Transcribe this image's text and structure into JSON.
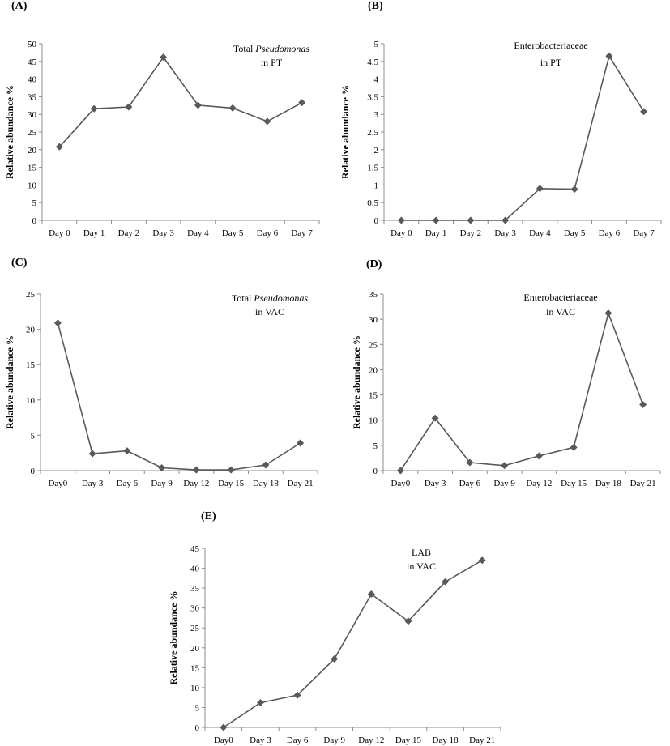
{
  "chart_data": [
    {
      "panel": "(A)",
      "type": "line",
      "annotation": [
        "Total ",
        "Pseudomonas",
        "in PT"
      ],
      "ylabel": "Relative abundance %",
      "categories": [
        "Day 0",
        "Day 1",
        "Day 2",
        "Day 3",
        "Day 4",
        "Day 5",
        "Day 6",
        "Day 7"
      ],
      "values": [
        20.8,
        31.6,
        32.1,
        46.2,
        32.6,
        31.8,
        28.0,
        33.3
      ],
      "yticks": [
        "0",
        "5",
        "10",
        "15",
        "20",
        "25",
        "30",
        "35",
        "40",
        "45",
        "50"
      ],
      "ylim": [
        0,
        50
      ],
      "grid": false
    },
    {
      "panel": "(B)",
      "type": "line",
      "annotation": [
        "Enterobacteriaceae",
        "",
        "in PT"
      ],
      "ylabel": "Relative abundance %",
      "categories": [
        "Day 0",
        "Day 1",
        "Day 2",
        "Day 3",
        "Day 4",
        "Day 5",
        "Day 6",
        "Day 7"
      ],
      "values": [
        0,
        0,
        0,
        0,
        0.9,
        0.88,
        4.65,
        3.08
      ],
      "yticks": [
        "0",
        "0.5",
        "1",
        "1.5",
        "2",
        "2.5",
        "3",
        "3.5",
        "4",
        "4.5",
        "5"
      ],
      "ylim": [
        0,
        5
      ],
      "grid": false
    },
    {
      "panel": "(C)",
      "type": "line",
      "annotation": [
        "Total ",
        "Pseudomonas",
        "in VAC"
      ],
      "ylabel": "Relative abundance %",
      "categories": [
        "Day0",
        "Day 3",
        "Day 6",
        "Day 9",
        "Day 12",
        "Day 15",
        "Day 18",
        "Day 21"
      ],
      "values": [
        20.9,
        2.4,
        2.8,
        0.4,
        0.1,
        0.1,
        0.8,
        3.9
      ],
      "yticks": [
        "0",
        "5",
        "10",
        "15",
        "20",
        "25"
      ],
      "ylim": [
        0,
        25
      ],
      "grid": false
    },
    {
      "panel": "(D)",
      "type": "line",
      "annotation": [
        "Enterobacteriaceae",
        "",
        "in VAC"
      ],
      "ylabel": "Relative abundance %",
      "categories": [
        "Day0",
        "Day 3",
        "Day 6",
        "Day 9",
        "Day 12",
        "Day 15",
        "Day 18",
        "Day 21"
      ],
      "values": [
        0,
        10.4,
        1.6,
        1.0,
        2.9,
        4.6,
        31.2,
        13.1
      ],
      "yticks": [
        "0",
        "5",
        "10",
        "15",
        "20",
        "25",
        "30",
        "35"
      ],
      "ylim": [
        0,
        35
      ],
      "grid": false
    },
    {
      "panel": "(E)",
      "type": "line",
      "annotation": [
        "LAB",
        "",
        "in VAC"
      ],
      "ylabel": "Relative abundance %",
      "categories": [
        "Day0",
        "Day 3",
        "Day 6",
        "Day 9",
        "Day 12",
        "Day 15",
        "Day 18",
        "Day 21"
      ],
      "values": [
        0,
        6.2,
        8.1,
        17.2,
        33.5,
        26.7,
        36.6,
        42.0
      ],
      "yticks": [
        "0",
        "5",
        "10",
        "15",
        "20",
        "25",
        "30",
        "35",
        "40",
        "45"
      ],
      "ylim": [
        0,
        45
      ],
      "grid": false
    }
  ],
  "colors": {
    "series": "#595959",
    "axis": "#8c8c8c",
    "text": "#000000"
  }
}
